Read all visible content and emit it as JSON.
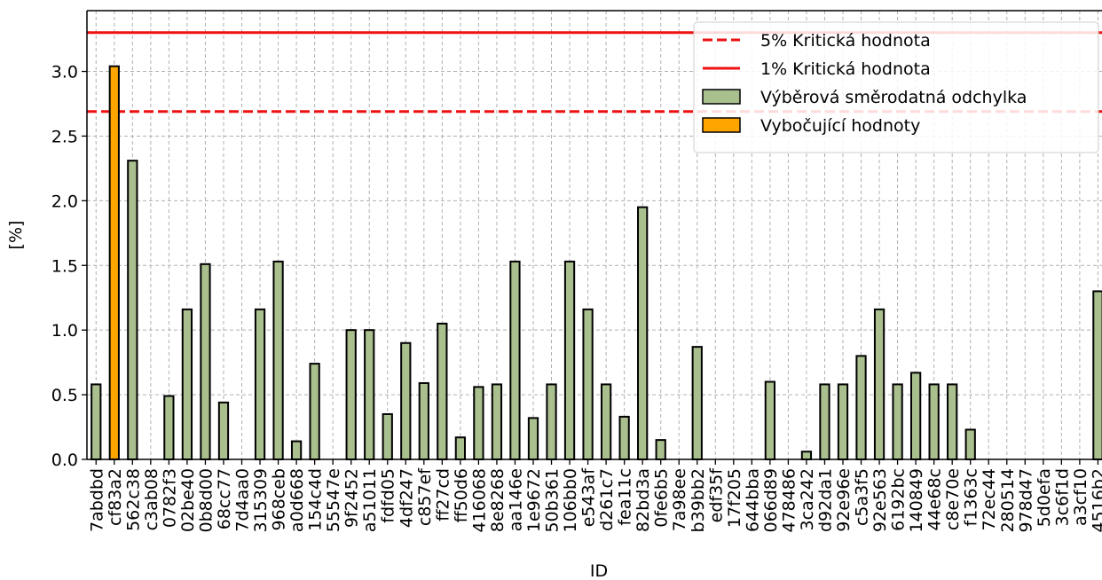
{
  "chart_data": {
    "type": "bar",
    "x_label": "ID",
    "y_label": "[%]",
    "categories": [
      "7abdbd",
      "cf83a2",
      "562c38",
      "c3ab08",
      "0782f3",
      "02be40",
      "0b8d00",
      "68cc77",
      "7d4aa0",
      "315309",
      "968ceb",
      "a0d668",
      "154c4d",
      "55547e",
      "9f2452",
      "a51011",
      "fdfd05",
      "4df247",
      "c857ef",
      "ff27cd",
      "ff50d6",
      "416068",
      "8e8268",
      "aa146e",
      "1e9672",
      "50b361",
      "106bb0",
      "e543af",
      "d261c7",
      "fea11c",
      "82bd3a",
      "0fe6b5",
      "7a98ee",
      "b39bb2",
      "edf35f",
      "17f205",
      "644bba",
      "066d89",
      "478486",
      "3ca242",
      "d92da1",
      "92e96e",
      "c5a3f5",
      "92e563",
      "6192bc",
      "140849",
      "44e68c",
      "c8e70e",
      "f1363c",
      "72ec44",
      "280514",
      "978d47",
      "5d0efa",
      "3c6f1d",
      "a3cf10",
      "4516b2"
    ],
    "series": [
      {
        "name": "Výběrová směrodatná odchylka",
        "color": "#a9bf8e",
        "values": [
          0.58,
          null,
          2.31,
          0,
          0.49,
          1.16,
          1.51,
          0.44,
          0,
          1.16,
          1.53,
          0.14,
          0.74,
          0,
          1.0,
          1.0,
          0.35,
          0.9,
          0.59,
          1.05,
          0.17,
          0.56,
          0.58,
          1.53,
          0.32,
          0.58,
          1.53,
          1.16,
          0.58,
          0.33,
          1.95,
          0.15,
          0,
          0.87,
          0,
          0,
          0,
          0.6,
          0,
          0.06,
          0.58,
          0.58,
          0.8,
          1.16,
          0.58,
          0.67,
          0.58,
          0.58,
          0.23,
          0,
          0,
          0,
          0,
          0,
          0,
          1.3
        ]
      },
      {
        "name": "Vybočující hodnoty",
        "color": "#ffa500",
        "values": [
          null,
          3.04,
          null,
          null,
          null,
          null,
          null,
          null,
          null,
          null,
          null,
          null,
          null,
          null,
          null,
          null,
          null,
          null,
          null,
          null,
          null,
          null,
          null,
          null,
          null,
          null,
          null,
          null,
          null,
          null,
          null,
          null,
          null,
          null,
          null,
          null,
          null,
          null,
          null,
          null,
          null,
          null,
          null,
          null,
          null,
          null,
          null,
          null,
          null,
          null,
          null,
          null,
          null,
          null,
          null,
          null
        ]
      }
    ],
    "lines": [
      {
        "name": "5% Kritická hodnota",
        "value": 2.69,
        "color": "#ee1111",
        "style": "dashed"
      },
      {
        "name": "1% Kritická hodnota",
        "value": 3.3,
        "color": "#ee1111",
        "style": "solid"
      }
    ],
    "ylim": [
      0,
      3.47
    ],
    "yticks": [
      {
        "value": 0,
        "label": "0.0"
      },
      {
        "value": 0.5,
        "label": "0.5"
      },
      {
        "value": 1,
        "label": "1.0"
      },
      {
        "value": 1.5,
        "label": "1.5"
      },
      {
        "value": 2,
        "label": "2.0"
      },
      {
        "value": 2.5,
        "label": "2.5"
      },
      {
        "value": 3,
        "label": "3.0"
      }
    ],
    "grid": true,
    "legend": "upper right"
  }
}
